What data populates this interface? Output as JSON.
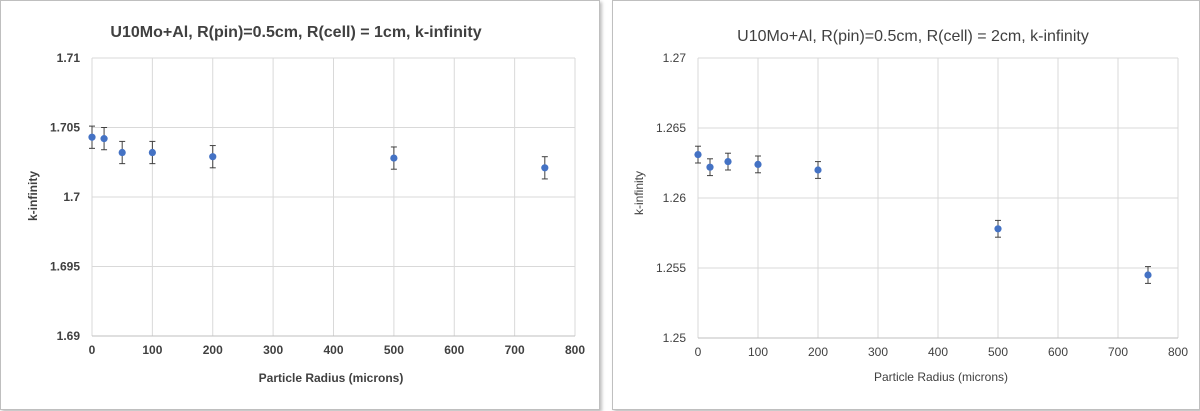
{
  "chart_data": [
    {
      "type": "scatter",
      "title": "U10Mo+Al, R(pin)=0.5cm, R(cell) = 1cm, k-infinity",
      "xlabel": "Particle Radius (microns)",
      "ylabel": "k-infinity",
      "xlim": [
        0,
        800
      ],
      "ylim": [
        1.69,
        1.71
      ],
      "xticks": [
        "0",
        "100",
        "200",
        "300",
        "400",
        "500",
        "600",
        "700",
        "800"
      ],
      "yticks": [
        "1.69",
        "1.695",
        "1.7",
        "1.705",
        "1.71"
      ],
      "grid": true,
      "series": [
        {
          "x": [
            0,
            20,
            50,
            100,
            200,
            500,
            750
          ],
          "y": [
            1.7043,
            1.7042,
            1.7032,
            1.7032,
            1.7029,
            1.7028,
            1.7021
          ],
          "error": [
            0.0008,
            0.0008,
            0.0008,
            0.0008,
            0.0008,
            0.0008,
            0.0008
          ]
        }
      ],
      "colors": {
        "marker": "#4472c4",
        "grid": "#d9d9d9",
        "errorbar": "#404040"
      }
    },
    {
      "type": "scatter",
      "title": "U10Mo+Al, R(pin)=0.5cm, R(cell) = 2cm, k-infinity",
      "xlabel": "Particle Radius (microns)",
      "ylabel": "k-infinity",
      "xlim": [
        0,
        800
      ],
      "ylim": [
        1.25,
        1.27
      ],
      "xticks": [
        "0",
        "100",
        "200",
        "300",
        "400",
        "500",
        "600",
        "700",
        "800"
      ],
      "yticks": [
        "1.25",
        "1.255",
        "1.26",
        "1.265",
        "1.27"
      ],
      "grid": true,
      "series": [
        {
          "x": [
            0,
            20,
            50,
            100,
            200,
            500,
            750
          ],
          "y": [
            1.2631,
            1.2622,
            1.2626,
            1.2624,
            1.262,
            1.2578,
            1.2545
          ],
          "error": [
            0.0006,
            0.0006,
            0.0006,
            0.0006,
            0.0006,
            0.0006,
            0.0006
          ]
        }
      ],
      "colors": {
        "marker": "#4472c4",
        "grid": "#d9d9d9",
        "errorbar": "#404040"
      }
    }
  ]
}
